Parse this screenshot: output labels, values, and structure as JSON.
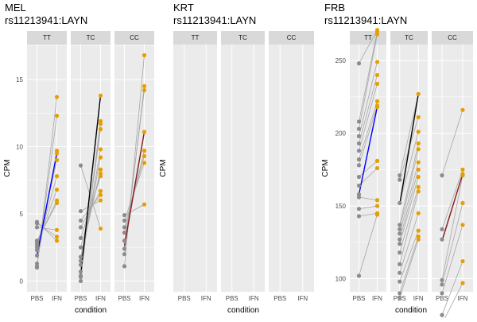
{
  "chart_data": [
    {
      "type": "scatter",
      "title": "MEL",
      "subtitle": "rs11213941:LAYN",
      "xlabel": "condition",
      "ylabel": "CPM",
      "x_categories": [
        "PBS",
        "IFN"
      ],
      "facets": [
        "TT",
        "TC",
        "CC"
      ],
      "ylim": [
        -0.8,
        17.6
      ],
      "yticks": [
        0,
        5,
        10,
        15
      ],
      "grid": true,
      "pbs_color": "#8c8c8c",
      "ifn_color": "#e69f00",
      "panels": [
        {
          "genotype": "TT",
          "mean_color": "#0000ff",
          "mean": [
            1.9,
            9.5
          ],
          "pairs": [
            [
              1.0,
              13.7
            ],
            [
              1.1,
              12.3
            ],
            [
              1.3,
              9.7
            ],
            [
              1.9,
              9.5
            ],
            [
              2.3,
              9.0
            ],
            [
              2.5,
              7.8
            ],
            [
              2.7,
              6.8
            ],
            [
              2.9,
              6.0
            ],
            [
              3.0,
              5.8
            ],
            [
              4.0,
              3.8
            ],
            [
              4.3,
              3.3
            ],
            [
              4.4,
              3.0
            ]
          ]
        },
        {
          "genotype": "TC",
          "mean_color": "#000000",
          "mean": [
            0.5,
            13.8
          ],
          "pairs": [
            [
              0.0,
              13.8
            ],
            [
              0.3,
              11.9
            ],
            [
              0.4,
              11.7
            ],
            [
              0.7,
              11.3
            ],
            [
              1.2,
              9.8
            ],
            [
              1.5,
              9.2
            ],
            [
              1.8,
              8.3
            ],
            [
              2.5,
              8.0
            ],
            [
              3.2,
              7.8
            ],
            [
              4.0,
              6.7
            ],
            [
              4.5,
              6.4
            ],
            [
              5.2,
              6.0
            ],
            [
              8.6,
              3.9
            ]
          ]
        },
        {
          "genotype": "CC",
          "mean_color": "#8b1a1a",
          "mean": [
            2.6,
            11.1
          ],
          "pairs": [
            [
              1.1,
              16.8
            ],
            [
              2.0,
              14.5
            ],
            [
              2.4,
              14.2
            ],
            [
              3.0,
              11.1
            ],
            [
              3.6,
              9.7
            ],
            [
              4.0,
              9.3
            ],
            [
              4.5,
              8.8
            ],
            [
              4.9,
              5.7
            ]
          ]
        }
      ]
    },
    {
      "type": "scatter",
      "title": "KRT",
      "subtitle": "rs11213941:LAYN",
      "xlabel": "condition",
      "ylabel": "CPM",
      "x_categories": [
        "PBS",
        "IFN"
      ],
      "facets": [
        "TT",
        "TC",
        "CC"
      ],
      "panels": []
    },
    {
      "type": "scatter",
      "title": "FRB",
      "subtitle": "rs11213941:LAYN",
      "xlabel": "condition",
      "ylabel": "CPM",
      "x_categories": [
        "PBS",
        "IFN"
      ],
      "facets": [
        "TT",
        "TC",
        "CC"
      ],
      "ylim": [
        91,
        261
      ],
      "yticks": [
        100,
        150,
        200,
        250
      ],
      "grid": true,
      "pbs_color": "#8c8c8c",
      "ifn_color": "#e69f00",
      "panels": [
        {
          "genotype": "TT",
          "mean_color": "#0000ff",
          "mean": [
            158,
            218
          ],
          "pairs": [
            [
              248,
              271
            ],
            [
              208,
              270
            ],
            [
              203,
              268
            ],
            [
              198,
              249
            ],
            [
              193,
              240
            ],
            [
              188,
              234
            ],
            [
              182,
              222
            ],
            [
              178,
              219
            ],
            [
              170,
              181
            ],
            [
              164,
              176
            ],
            [
              158,
              218
            ],
            [
              156,
              154
            ],
            [
              148,
              150
            ],
            [
              143,
              145
            ],
            [
              102,
              144
            ]
          ]
        },
        {
          "genotype": "TC",
          "mean_color": "#000000",
          "mean": [
            151,
            227
          ],
          "pairs": [
            [
              171,
              227
            ],
            [
              168,
              211
            ],
            [
              152,
              201
            ],
            [
              137,
              193
            ],
            [
              134,
              189
            ],
            [
              131,
              180
            ],
            [
              127,
              175
            ],
            [
              124,
              170
            ],
            [
              118,
              163
            ],
            [
              110,
              160
            ],
            [
              104,
              145
            ],
            [
              98,
              133
            ],
            [
              90,
              129
            ],
            [
              87,
              127
            ]
          ]
        },
        {
          "genotype": "CC",
          "mean_color": "#8b1a1a",
          "mean": [
            126,
            172
          ],
          "pairs": [
            [
              171,
              216
            ],
            [
              134,
              175
            ],
            [
              127,
              172
            ],
            [
              99,
              171
            ],
            [
              96,
              152
            ],
            [
              90,
              137
            ],
            [
              75,
              112
            ],
            [
              69,
              97
            ]
          ]
        }
      ]
    }
  ]
}
